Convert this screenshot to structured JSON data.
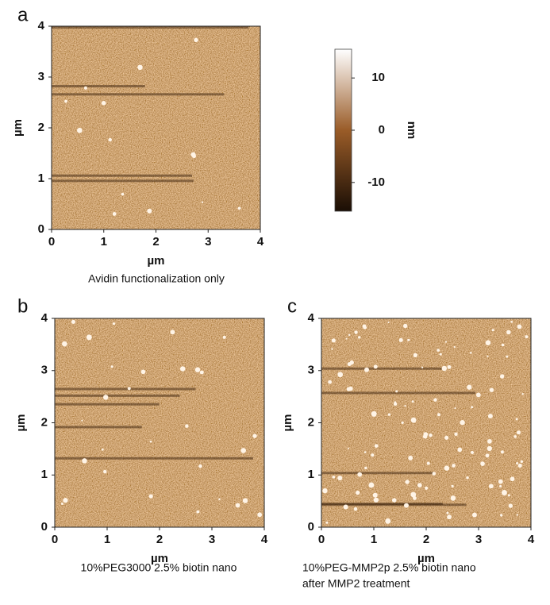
{
  "chart_data": [
    {
      "type": "image",
      "panel": "a",
      "xlabel": "µm",
      "ylabel": "µm",
      "xlim": [
        0,
        4
      ],
      "ylim": [
        0,
        4
      ],
      "xticks": [
        0,
        1,
        2,
        3,
        4
      ],
      "yticks": [
        0,
        1,
        2,
        3,
        4
      ],
      "caption": [
        "Avidin functionalization only"
      ]
    },
    {
      "type": "image",
      "panel": "b",
      "xlabel": "µm",
      "ylabel": "µm",
      "xlim": [
        0,
        4
      ],
      "ylim": [
        0,
        4
      ],
      "xticks": [
        0,
        1,
        2,
        3,
        4
      ],
      "yticks": [
        0,
        1,
        2,
        3,
        4
      ],
      "caption": [
        "10%PEG3000 2.5% biotin nano"
      ]
    },
    {
      "type": "image",
      "panel": "c",
      "xlabel": "µm",
      "ylabel": "µm",
      "xlim": [
        0,
        4
      ],
      "ylim": [
        0,
        4
      ],
      "xticks": [
        0,
        1,
        2,
        3,
        4
      ],
      "yticks": [
        0,
        1,
        2,
        3,
        4
      ],
      "caption": [
        "10%PEG-MMP2p 2.5% biotin nano",
        "after MMP2 treatment"
      ]
    },
    {
      "type": "colorbar",
      "label": "nm",
      "ylim": [
        -15.5,
        15.5
      ],
      "yticks": [
        -10,
        0,
        10
      ],
      "colors": [
        "#1a0e05",
        "#9a5c28",
        "#ffffff"
      ]
    }
  ]
}
